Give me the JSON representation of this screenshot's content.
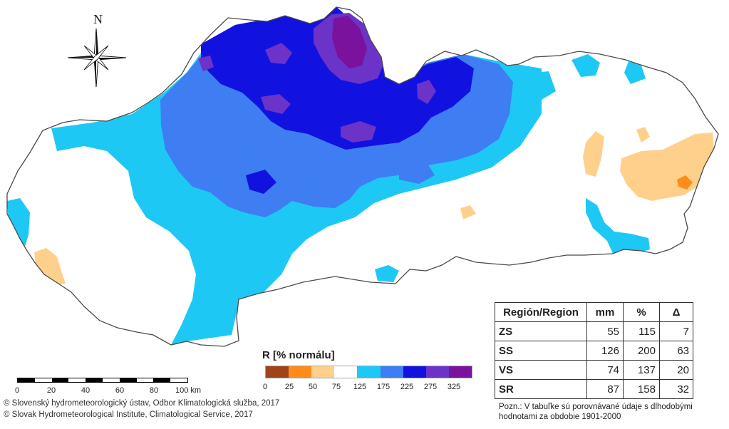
{
  "compass": {
    "north_label": "N"
  },
  "legend": {
    "title": "R [% normálu]",
    "colors": [
      "#a0431a",
      "#ff8c1a",
      "#ffd08c",
      "#ffffff",
      "#1ec8f5",
      "#3f7df2",
      "#1212e0",
      "#6b33c8",
      "#7a129e"
    ],
    "labels": [
      "0",
      "25",
      "50",
      "75",
      "125",
      "175",
      "225",
      "275",
      "325"
    ]
  },
  "scalebar": {
    "labels": [
      "0",
      "20",
      "40",
      "60",
      "80",
      "100 km"
    ]
  },
  "credits": {
    "line1": "© Slovenský hydrometeorologický ústav, Odbor Klimatologická služba, 2017",
    "line2": "© Slovak Hydrometeorological Institute, Climatological Service, 2017"
  },
  "table": {
    "headers": [
      "Región/Region",
      "mm",
      "%",
      "Δ"
    ],
    "rows": [
      {
        "region": "ZS",
        "mm": "55",
        "pct": "115",
        "delta": "7"
      },
      {
        "region": "SS",
        "mm": "126",
        "pct": "200",
        "delta": "63"
      },
      {
        "region": "VS",
        "mm": "74",
        "pct": "137",
        "delta": "20"
      },
      {
        "region": "SR",
        "mm": "87",
        "pct": "158",
        "delta": "32"
      }
    ]
  },
  "note": {
    "line1": "Pozn.: V tabuľke sú porovnávané údaje s dlhodobými",
    "line2": "hodnotami za obdobie 1901-2000"
  }
}
